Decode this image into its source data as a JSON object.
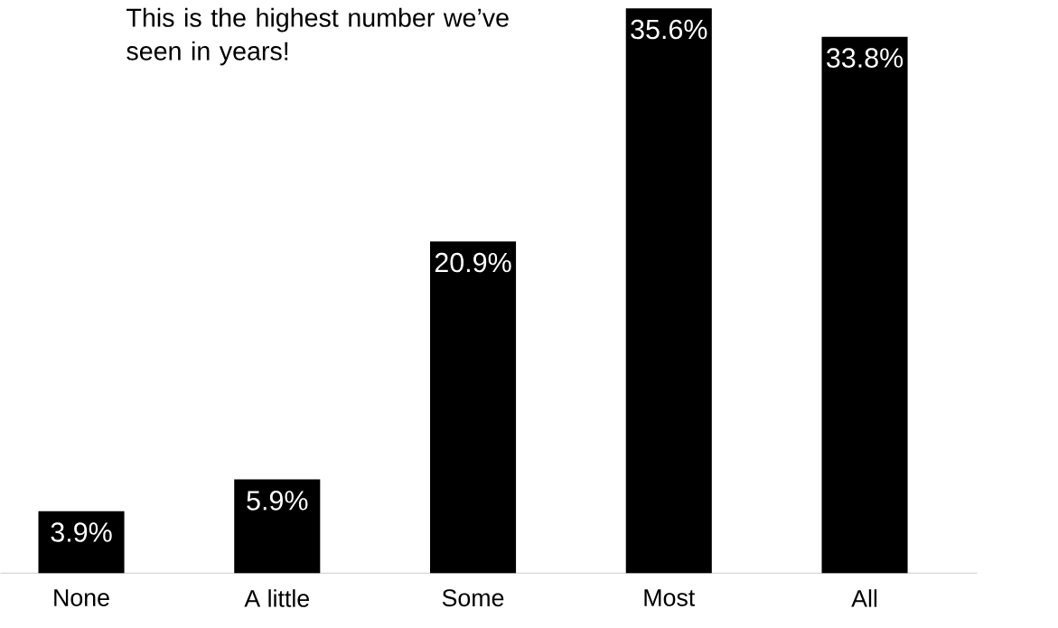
{
  "chart_data": {
    "type": "bar",
    "annotations": [
      "This is the highest number we’ve seen in years!"
    ],
    "categories": [
      "None",
      "A little",
      "Some",
      "Most",
      "All"
    ],
    "values": [
      3.9,
      5.9,
      20.9,
      35.6,
      33.8
    ],
    "value_labels": [
      "3.9%",
      "5.9%",
      "20.9%",
      "35.6%",
      "33.8%"
    ],
    "color": "#000000"
  }
}
